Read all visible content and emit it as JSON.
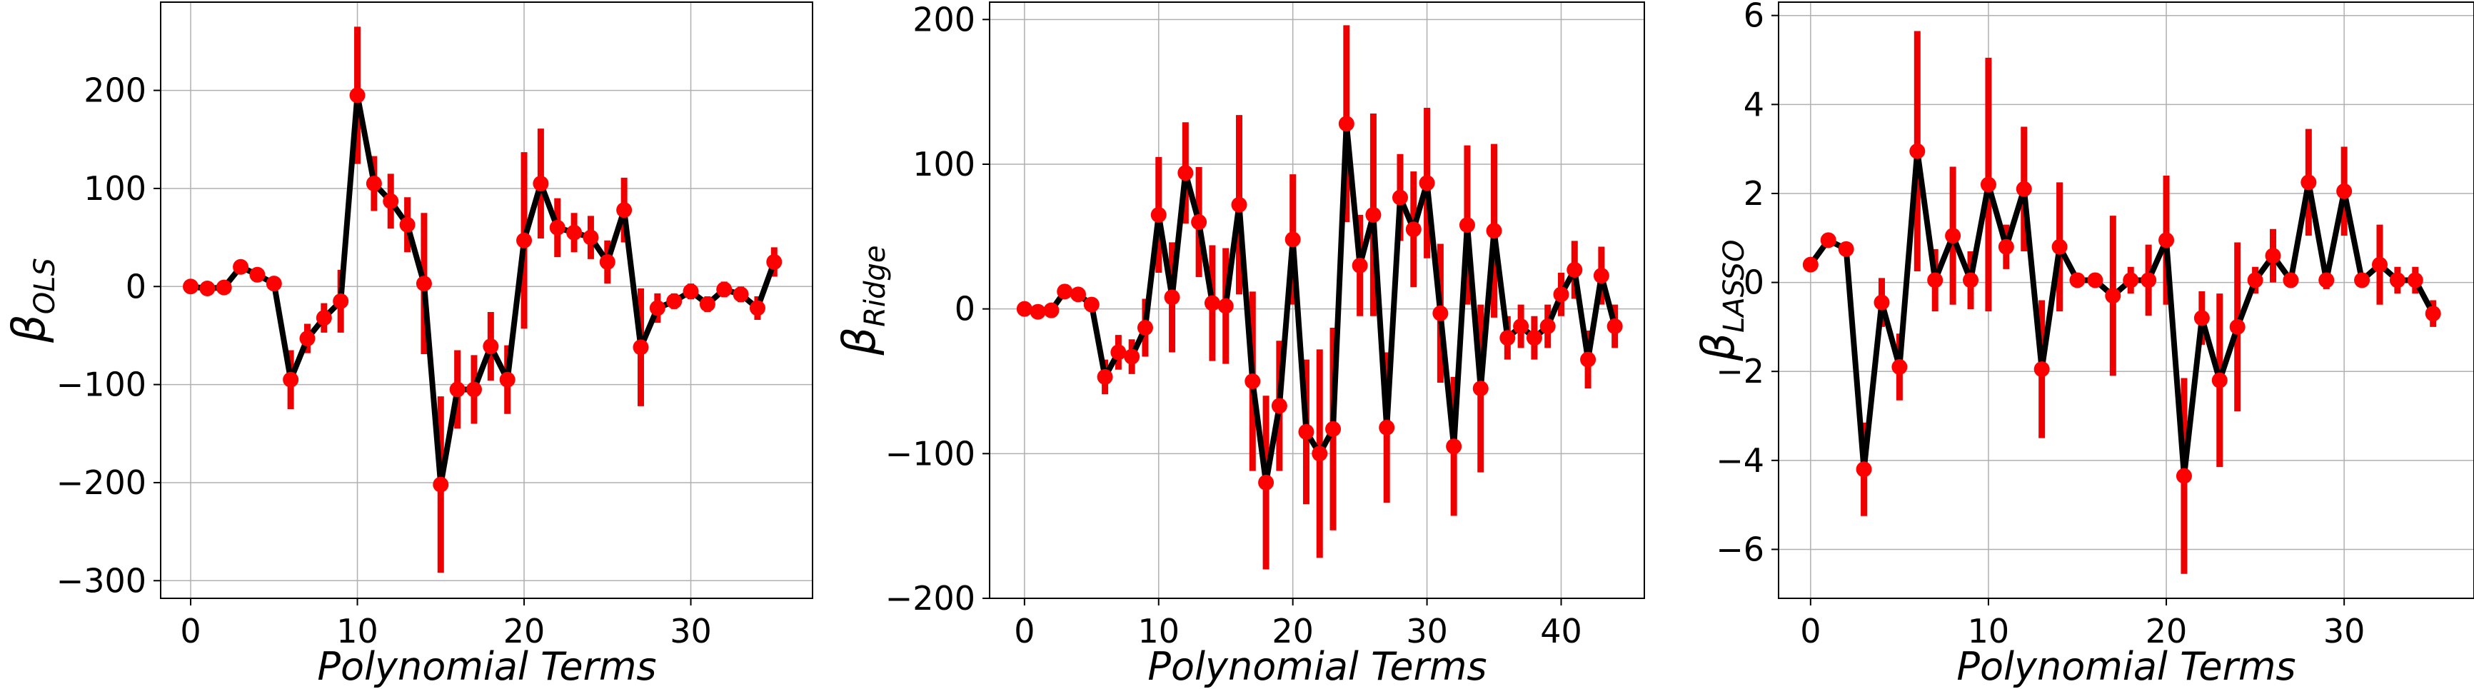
{
  "colors": {
    "line": "#000000",
    "marker": "#ff0000",
    "errorbar": "#ee0000",
    "grid": "#b0b0b0"
  },
  "chart_data": [
    {
      "type": "line",
      "ylabel": "β",
      "ylabel_sub": "OLS",
      "xlabel": "Polynomial Terms",
      "grid": true,
      "xlim": [
        -1.8,
        37.3
      ],
      "ylim": [
        -318,
        290
      ],
      "xticks": [
        0,
        10,
        20,
        30
      ],
      "xtick_labels": [
        "0",
        "10",
        "20",
        "30"
      ],
      "yticks": [
        -300,
        -200,
        -100,
        0,
        100,
        200
      ],
      "ytick_labels": [
        "−300",
        "−200",
        "−100",
        "0",
        "100",
        "200"
      ],
      "x": [
        0,
        1,
        2,
        3,
        4,
        5,
        6,
        7,
        8,
        9,
        10,
        11,
        12,
        13,
        14,
        15,
        16,
        17,
        18,
        19,
        20,
        21,
        22,
        23,
        24,
        25,
        26,
        27,
        28,
        29,
        30,
        31,
        32,
        33,
        34,
        35
      ],
      "y": [
        0,
        -2,
        -1,
        20,
        12,
        3,
        -95,
        -53,
        -32,
        -15,
        195,
        105,
        87,
        63,
        3,
        -202,
        -105,
        -105,
        -61,
        -95,
        47,
        105,
        60,
        55,
        50,
        25,
        78,
        -62,
        -22,
        -15,
        -5,
        -18,
        -3,
        -8,
        -22,
        25
      ],
      "err": [
        0,
        0,
        0,
        0,
        0,
        0,
        30,
        15,
        15,
        32,
        70,
        28,
        28,
        28,
        72,
        90,
        40,
        35,
        35,
        35,
        90,
        56,
        30,
        20,
        22,
        22,
        33,
        60,
        15,
        8,
        8,
        8,
        8,
        8,
        12,
        15
      ]
    },
    {
      "type": "line",
      "ylabel": "β",
      "ylabel_sub": "Ridge",
      "xlabel": "Polynomial Terms",
      "grid": true,
      "xlim": [
        -2.6,
        46.2
      ],
      "ylim": [
        -200,
        212
      ],
      "xticks": [
        0,
        10,
        20,
        30,
        40
      ],
      "xtick_labels": [
        "0",
        "10",
        "20",
        "30",
        "40"
      ],
      "yticks": [
        -200,
        -100,
        0,
        100,
        200
      ],
      "ytick_labels": [
        "−200",
        "−100",
        "0",
        "100",
        "200"
      ],
      "x": [
        0,
        1,
        2,
        3,
        4,
        5,
        6,
        7,
        8,
        9,
        10,
        11,
        12,
        13,
        14,
        15,
        16,
        17,
        18,
        19,
        20,
        21,
        22,
        23,
        24,
        25,
        26,
        27,
        28,
        29,
        30,
        31,
        32,
        33,
        34,
        35,
        36,
        37,
        38,
        39,
        40,
        41,
        42,
        43,
        44
      ],
      "y": [
        0,
        -2,
        -1,
        12,
        10,
        3,
        -47,
        -30,
        -33,
        -13,
        65,
        8,
        94,
        60,
        4,
        2,
        72,
        -50,
        -120,
        -67,
        48,
        -85,
        -100,
        -83,
        128,
        30,
        65,
        -82,
        77,
        55,
        87,
        -3,
        -95,
        58,
        -55,
        54,
        -20,
        -12,
        -20,
        -12,
        10,
        27,
        -35,
        23,
        -12
      ],
      "err": [
        0,
        0,
        0,
        0,
        0,
        0,
        12,
        12,
        12,
        20,
        40,
        38,
        35,
        38,
        40,
        40,
        62,
        62,
        60,
        45,
        45,
        50,
        72,
        70,
        68,
        35,
        70,
        52,
        30,
        40,
        52,
        48,
        48,
        55,
        58,
        60,
        15,
        15,
        15,
        15,
        15,
        20,
        20,
        20,
        15
      ]
    },
    {
      "type": "line",
      "ylabel": "β",
      "ylabel_sub": "LASSO",
      "xlabel": "Polynomial Terms",
      "grid": true,
      "xlim": [
        -1.8,
        37.3
      ],
      "ylim": [
        -7.1,
        6.3
      ],
      "xticks": [
        0,
        10,
        20,
        30
      ],
      "xtick_labels": [
        "0",
        "10",
        "20",
        "30"
      ],
      "yticks": [
        -6,
        -4,
        -2,
        0,
        2,
        4,
        6
      ],
      "ytick_labels": [
        "−6",
        "−4",
        "−2",
        "0",
        "2",
        "4",
        "6"
      ],
      "x": [
        0,
        1,
        2,
        3,
        4,
        5,
        6,
        7,
        8,
        9,
        10,
        11,
        12,
        13,
        14,
        15,
        16,
        17,
        18,
        19,
        20,
        21,
        22,
        23,
        24,
        25,
        26,
        27,
        28,
        29,
        30,
        31,
        32,
        33,
        34,
        35
      ],
      "y": [
        0.4,
        0.95,
        0.75,
        -4.2,
        -0.45,
        -1.9,
        2.95,
        0.05,
        1.05,
        0.05,
        2.2,
        0.8,
        2.1,
        -1.95,
        0.8,
        0.05,
        0.05,
        -0.3,
        0.05,
        0.05,
        0.95,
        -4.35,
        -0.8,
        -2.2,
        -1.0,
        0.05,
        0.6,
        0.05,
        2.25,
        0.05,
        2.05,
        0.05,
        0.4,
        0.05,
        0.05,
        -0.7
      ],
      "err": [
        0,
        0,
        0,
        1.05,
        0.55,
        0.75,
        2.7,
        0.7,
        1.55,
        0.65,
        2.85,
        0.5,
        1.4,
        1.55,
        1.45,
        0,
        0,
        1.8,
        0.3,
        0.8,
        1.45,
        2.2,
        0.6,
        1.95,
        1.9,
        0.3,
        0.6,
        0,
        1.2,
        0.2,
        1.0,
        0,
        0.9,
        0.3,
        0.3,
        0.3
      ]
    }
  ]
}
